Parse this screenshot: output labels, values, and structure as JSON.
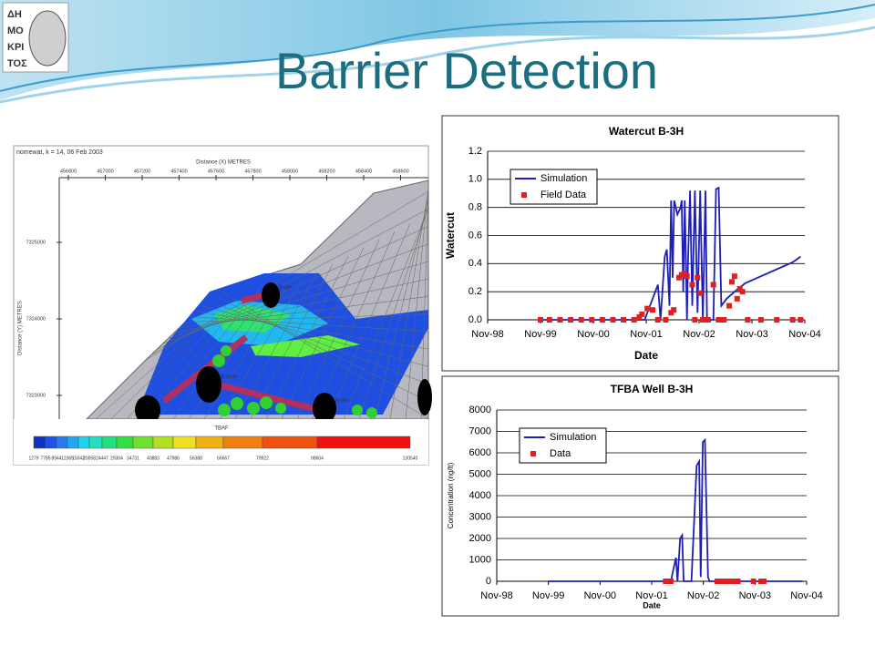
{
  "slide_title": "Barrier Detection",
  "logo_text": [
    "ΔΗ",
    "ΜΟ",
    "ΚΡΙ",
    "ΤΟΣ"
  ],
  "map": {
    "header": "nomewat, k = 14, 06 Feb 2003",
    "x_axis_label": "Distance (X)  METRES",
    "y_axis_label": "Distance (Y)  METRES",
    "x_labels": [
      "456800",
      "457000",
      "457200",
      "457400",
      "457600",
      "457800",
      "458000",
      "458200",
      "458400",
      "458600"
    ],
    "y_labels": [
      "7325000",
      "7324000",
      "7323000"
    ],
    "well_labels": [
      "B-3H",
      "B-4AH",
      "B-4H"
    ],
    "legend_title": "TBAF",
    "legend_labels": [
      "1279",
      "7785",
      "8944",
      "12365",
      "15043",
      "20058",
      "24447",
      "29304",
      "34731",
      "40883",
      "47986",
      "56388",
      "66667",
      "79922",
      "98604",
      "130540"
    ]
  },
  "chart_data": [
    {
      "type": "line",
      "title": "Watercut B-3H",
      "x_label": "Date",
      "y_label": "Watercut",
      "xlim": [
        1998.83,
        2004.83
      ],
      "xticks": [
        {
          "value": 1998.83,
          "label": "Nov-98"
        },
        {
          "value": 1999.83,
          "label": "Nov-99"
        },
        {
          "value": 2000.83,
          "label": "Nov-00"
        },
        {
          "value": 2001.83,
          "label": "Nov-01"
        },
        {
          "value": 2002.83,
          "label": "Nov-02"
        },
        {
          "value": 2003.83,
          "label": "Nov-03"
        },
        {
          "value": 2004.83,
          "label": "Nov-04"
        }
      ],
      "ylim": [
        0,
        1.2
      ],
      "yticks": [
        {
          "value": 0,
          "label": "0.0"
        },
        0.2,
        0.4,
        0.6,
        0.8,
        {
          "value": 1,
          "label": "1.0"
        },
        1.2
      ],
      "grid": true,
      "legend": "upper left",
      "series": [
        {
          "name": "Simulation",
          "color": "#1f1fb4",
          "style": "line",
          "x": [
            1999.83,
            2001.8,
            2001.95,
            2002.05,
            2002.1,
            2002.18,
            2002.22,
            2002.27,
            2002.3,
            2002.33,
            2002.36,
            2002.42,
            2002.48,
            2002.5,
            2002.53,
            2002.56,
            2002.6,
            2002.62,
            2002.66,
            2002.7,
            2002.75,
            2002.8,
            2002.85,
            2002.9,
            2002.95,
            2002.98,
            2003.1,
            2003.15,
            2003.2,
            2003.25,
            2003.35,
            2003.5,
            2003.7,
            2004.0,
            2004.3,
            2004.6,
            2004.75
          ],
          "values": [
            0,
            0,
            0.15,
            0.25,
            0,
            0.45,
            0.5,
            0.1,
            0.85,
            0.3,
            0.85,
            0.75,
            0.8,
            0.85,
            0.2,
            0.85,
            0,
            0.4,
            0.92,
            0.1,
            0.92,
            0.05,
            0.92,
            0,
            0.92,
            0,
            0,
            0.93,
            0.94,
            0.1,
            0.15,
            0.2,
            0.26,
            0.31,
            0.36,
            0.41,
            0.45
          ]
        },
        {
          "name": "Field Data",
          "color": "#e02020",
          "style": "points",
          "x": [
            1999.83,
            2000.0,
            2000.2,
            2000.4,
            2000.6,
            2000.8,
            2001.0,
            2001.2,
            2001.4,
            2001.6,
            2001.7,
            2001.75,
            2001.85,
            2001.95,
            2002.05,
            2002.2,
            2002.3,
            2002.35,
            2002.45,
            2002.5,
            2002.55,
            2002.6,
            2002.7,
            2002.75,
            2002.8,
            2002.85,
            2002.9,
            2003.0,
            2003.1,
            2003.2,
            2003.3,
            2003.4,
            2003.45,
            2003.5,
            2003.55,
            2003.6,
            2003.65,
            2003.75,
            2004.0,
            2004.3,
            2004.6,
            2004.75
          ],
          "values": [
            0,
            0,
            0,
            0,
            0,
            0,
            0,
            0,
            0,
            0,
            0.02,
            0.04,
            0.08,
            0.07,
            0,
            0,
            0.05,
            0.07,
            0.3,
            0.32,
            0.33,
            0.31,
            0.25,
            0,
            0.3,
            0.19,
            0,
            0,
            0.25,
            0,
            0,
            0.1,
            0.27,
            0.31,
            0.15,
            0.22,
            0.2,
            0,
            0,
            0,
            0,
            0
          ]
        }
      ]
    },
    {
      "type": "line",
      "title": "TFBA  Well B-3H",
      "x_label": "Date",
      "y_label": "Concentration (ng/lt)",
      "xlim": [
        1998.83,
        2004.83
      ],
      "xticks": [
        {
          "value": 1998.83,
          "label": "Nov-98"
        },
        {
          "value": 1999.83,
          "label": "Nov-99"
        },
        {
          "value": 2000.83,
          "label": "Nov-00"
        },
        {
          "value": 2001.83,
          "label": "Nov-01"
        },
        {
          "value": 2002.83,
          "label": "Nov-02"
        },
        {
          "value": 2003.83,
          "label": "Nov-03"
        },
        {
          "value": 2004.83,
          "label": "Nov-04"
        }
      ],
      "ylim": [
        0,
        8000
      ],
      "yticks": [
        0,
        1000,
        2000,
        3000,
        4000,
        5000,
        6000,
        7000,
        8000
      ],
      "grid": true,
      "legend": "upper left",
      "series": [
        {
          "name": "Simulation",
          "color": "#1f1fb4",
          "style": "line",
          "x": [
            1999.83,
            2002.2,
            2002.3,
            2002.33,
            2002.38,
            2002.42,
            2002.45,
            2002.6,
            2002.7,
            2002.75,
            2002.78,
            2002.82,
            2002.86,
            2002.92,
            2002.95,
            2004.75
          ],
          "values": [
            0,
            0,
            1100,
            0,
            2000,
            2150,
            0,
            0,
            5400,
            5600,
            200,
            6500,
            6600,
            200,
            0,
            0
          ]
        },
        {
          "name": "Data",
          "color": "#e02020",
          "style": "points",
          "x": [
            2002.1,
            2002.15,
            2002.2,
            2003.1,
            2003.15,
            2003.2,
            2003.3,
            2003.35,
            2003.45,
            2003.5,
            2003.8,
            2003.95,
            2004.0
          ],
          "values": [
            0,
            0,
            0,
            0,
            0,
            0,
            0,
            0,
            0,
            0,
            0,
            0,
            0
          ]
        }
      ]
    }
  ]
}
